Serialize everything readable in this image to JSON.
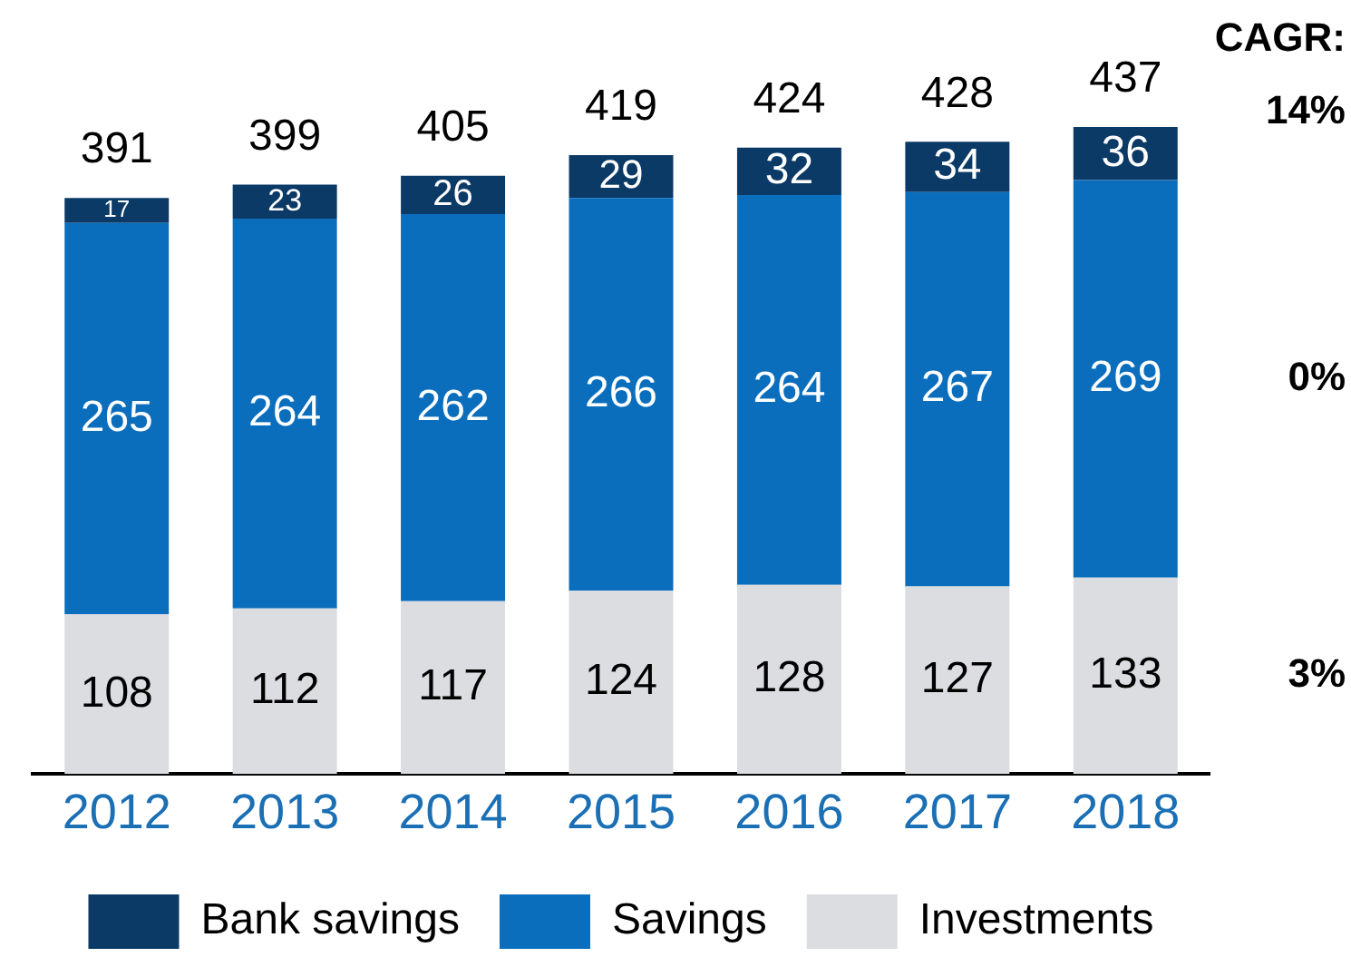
{
  "chart_data": {
    "type": "bar",
    "stacked": true,
    "data_labels": true,
    "legend": "bottom",
    "grid": false,
    "categories": [
      "2012",
      "2013",
      "2014",
      "2015",
      "2016",
      "2017",
      "2018"
    ],
    "series": [
      {
        "name": "Investments",
        "color": "#dcdde1",
        "values": [
          108,
          112,
          117,
          124,
          128,
          127,
          133
        ]
      },
      {
        "name": "Savings",
        "color": "#0a6ebd",
        "values": [
          265,
          264,
          262,
          266,
          264,
          267,
          269
        ]
      },
      {
        "name": "Bank savings",
        "color": "#0b3a66",
        "values": [
          17,
          23,
          26,
          29,
          32,
          34,
          36
        ]
      }
    ],
    "totals": [
      "391",
      "399",
      "405",
      "419",
      "424",
      "428",
      "437"
    ],
    "annotations": [
      "CAGR:",
      "14%",
      "0%",
      "3%"
    ]
  }
}
